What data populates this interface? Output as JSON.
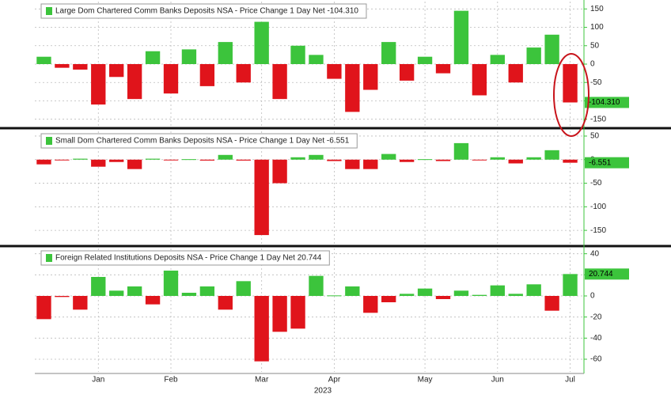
{
  "chart_data": [
    {
      "type": "bar",
      "title": "Large Dom Chartered Comm Banks Deposits NSA - Price Change 1 Day Net -104.310",
      "values": [
        20,
        -10,
        -15,
        -110,
        -35,
        -95,
        35,
        -80,
        40,
        -60,
        60,
        -50,
        115,
        -95,
        50,
        25,
        -40,
        -130,
        -70,
        60,
        -45,
        20,
        -25,
        145,
        -85,
        25,
        -50,
        45,
        80,
        -104.31
      ],
      "value_labels": [
        null,
        null,
        null,
        null,
        null,
        null,
        null,
        null,
        null,
        null,
        null,
        null,
        null,
        null,
        null,
        null,
        null,
        null,
        null,
        null,
        null,
        null,
        null,
        null,
        null,
        null,
        null,
        null,
        null,
        "-104.310"
      ],
      "positive_color": "#3cc43c",
      "negative_color": "#e0141b",
      "ylim": [
        -170,
        170
      ],
      "yticks": [
        150,
        100,
        50,
        0,
        -50,
        -100,
        -150
      ],
      "grid": true
    },
    {
      "type": "bar",
      "title": "Small Dom Chartered Comm Banks Deposits NSA - Price Change 1 Day Net -6.551",
      "values": [
        -10,
        -1,
        2,
        -15,
        -5,
        -20,
        2,
        -1,
        1,
        -2,
        10,
        -2,
        -160,
        -50,
        5,
        10,
        -3,
        -20,
        -20,
        12,
        -5,
        1,
        -3,
        35,
        -1,
        5,
        -8,
        5,
        20,
        -6.551
      ],
      "positive_color": "#3cc43c",
      "negative_color": "#e0141b",
      "ylim": [
        -180,
        60
      ],
      "yticks": [
        50,
        0,
        -50,
        -100,
        -150
      ],
      "grid": true
    },
    {
      "type": "bar",
      "title": "Foreign Related Institutions Deposits NSA - Price Change 1 Day Net 20.744",
      "categories": [
        null,
        null,
        null,
        "Jan",
        null,
        null,
        null,
        "Feb",
        null,
        null,
        null,
        null,
        "Mar",
        null,
        null,
        null,
        "Apr",
        null,
        null,
        null,
        null,
        "May",
        null,
        null,
        null,
        "Jun",
        null,
        null,
        null,
        "Jul"
      ],
      "x_label": "2023",
      "values": [
        -22,
        -1,
        -13,
        18,
        5,
        9,
        -8,
        24,
        3,
        9,
        -13,
        14,
        -62,
        -34,
        -31,
        19,
        0.5,
        9,
        -16,
        -6,
        2,
        7,
        -3,
        5,
        1,
        10,
        2,
        11,
        -14,
        20.744
      ],
      "positive_color": "#3cc43c",
      "negative_color": "#e0141b",
      "ylim": [
        -72,
        45
      ],
      "yticks": [
        40,
        20,
        0,
        -20,
        -40,
        -60
      ],
      "grid": true
    }
  ]
}
